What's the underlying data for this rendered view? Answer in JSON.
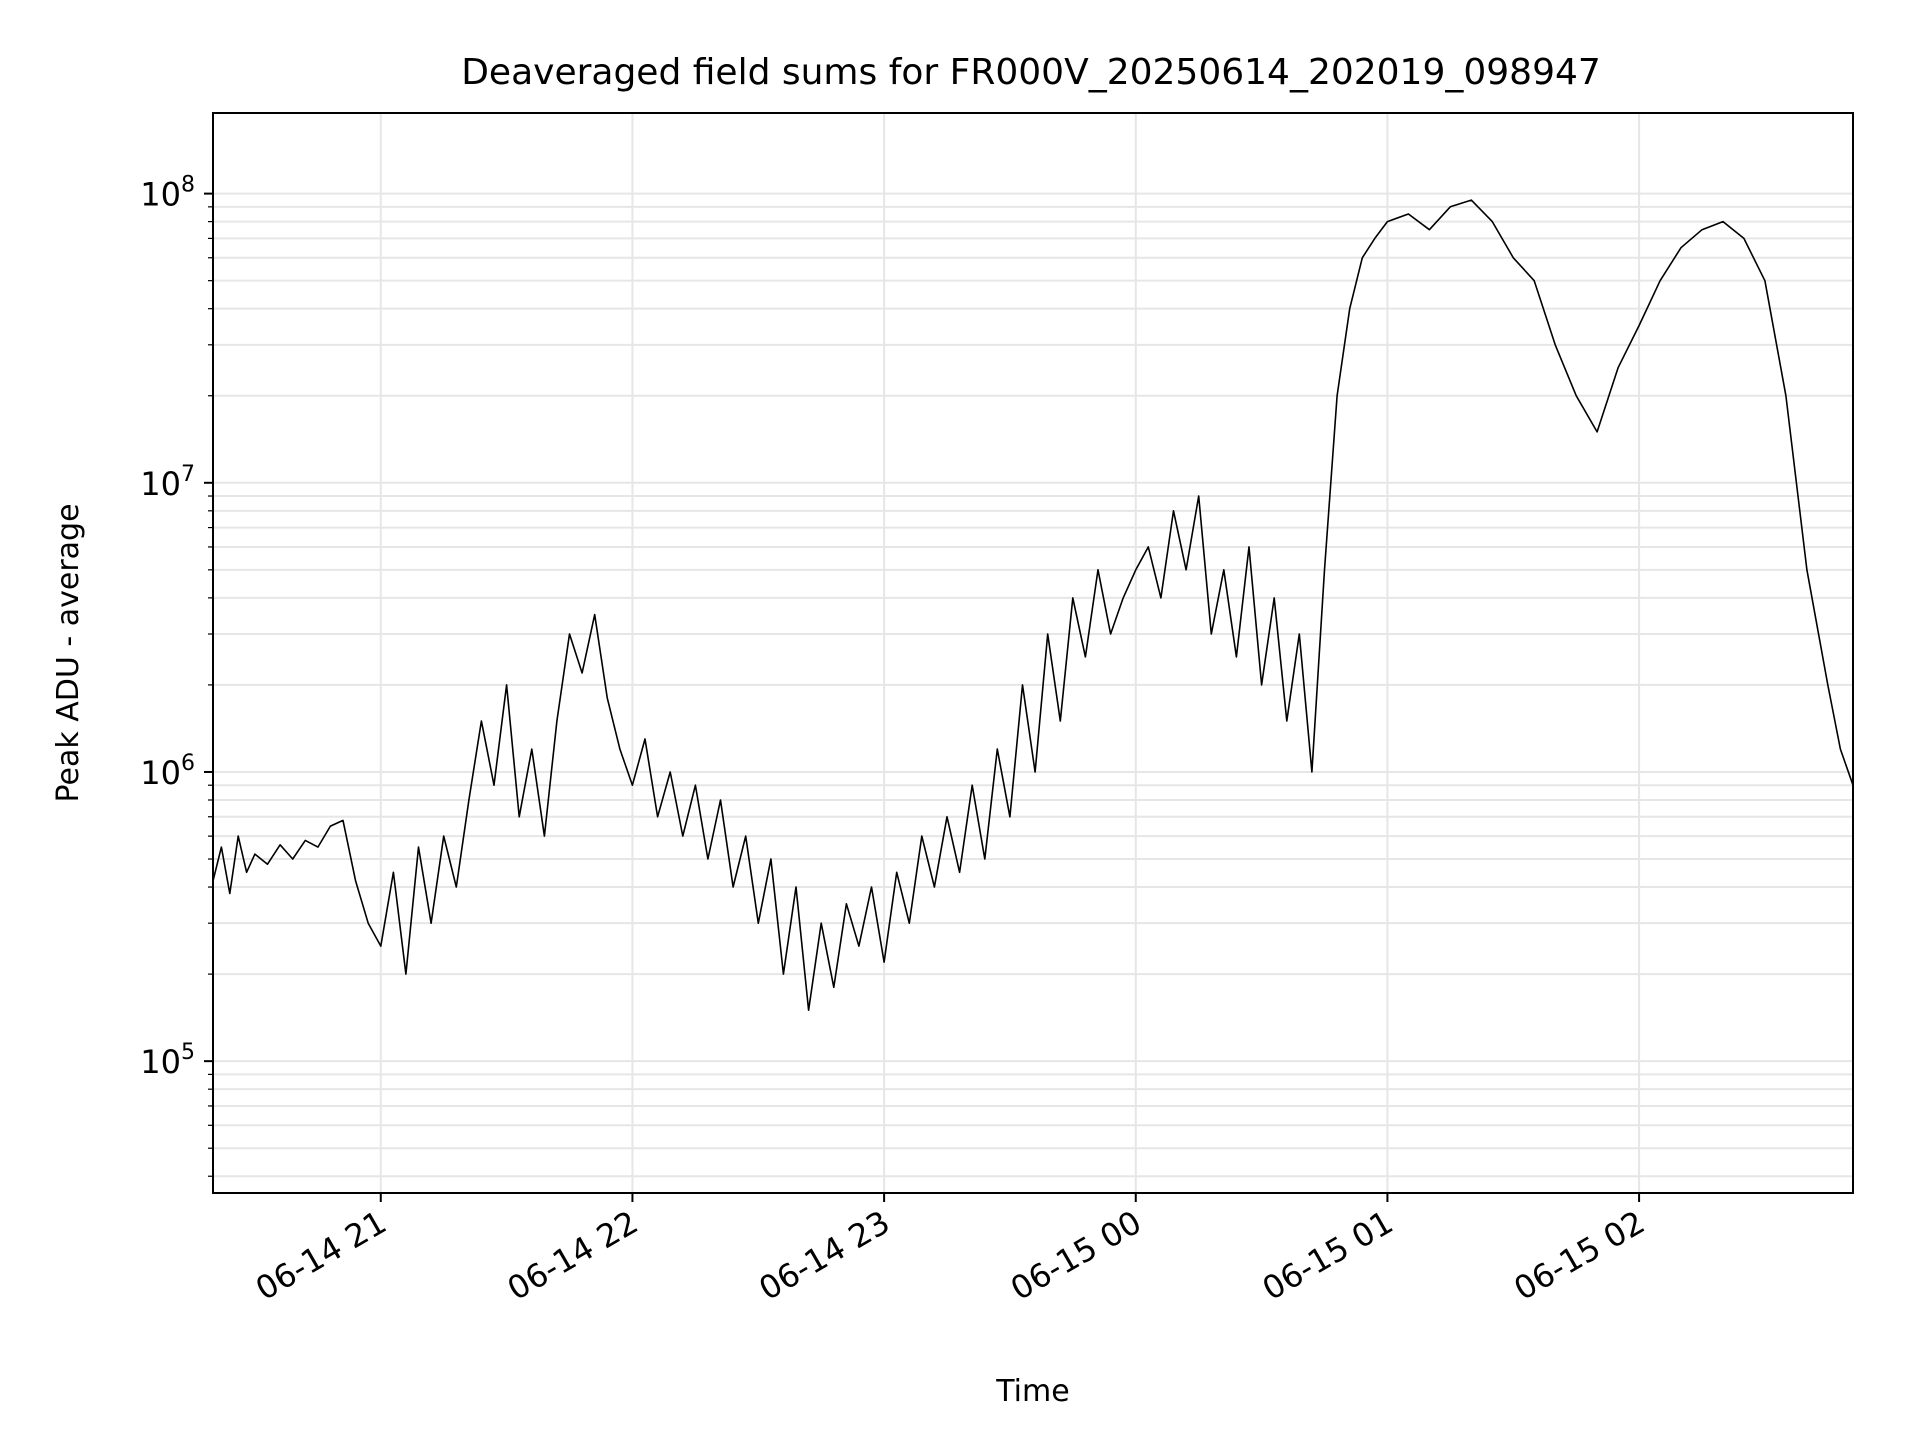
{
  "chart_data": {
    "type": "line",
    "title": "Deaveraged field sums for FR000V_20250614_202019_098947",
    "xlabel": "Time",
    "ylabel": "Peak ADU - average",
    "yscale": "log",
    "ylim": [
      35000,
      190000000
    ],
    "xlim": [
      "2025-06-14 20:20",
      "2025-06-15 02:51"
    ],
    "grid": true,
    "x_ticks": [
      {
        "t": "2025-06-14 21:00",
        "label": "06-14 21"
      },
      {
        "t": "2025-06-14 22:00",
        "label": "06-14 22"
      },
      {
        "t": "2025-06-14 23:00",
        "label": "06-14 23"
      },
      {
        "t": "2025-06-15 00:00",
        "label": "06-15 00"
      },
      {
        "t": "2025-06-15 01:00",
        "label": "06-15 01"
      },
      {
        "t": "2025-06-15 02:00",
        "label": "06-15 02"
      }
    ],
    "y_ticks": [
      {
        "value": 100000,
        "base": "10",
        "exp": "5"
      },
      {
        "value": 1000000,
        "base": "10",
        "exp": "6"
      },
      {
        "value": 10000000,
        "base": "10",
        "exp": "7"
      },
      {
        "value": 100000000,
        "base": "10",
        "exp": "8"
      }
    ],
    "series": [
      {
        "color": "#000000",
        "points": [
          [
            "2025-06-14 20:20",
            420000
          ],
          [
            "2025-06-14 20:22",
            550000
          ],
          [
            "2025-06-14 20:24",
            380000
          ],
          [
            "2025-06-14 20:26",
            600000
          ],
          [
            "2025-06-14 20:28",
            450000
          ],
          [
            "2025-06-14 20:30",
            520000
          ],
          [
            "2025-06-14 20:33",
            480000
          ],
          [
            "2025-06-14 20:36",
            560000
          ],
          [
            "2025-06-14 20:39",
            500000
          ],
          [
            "2025-06-14 20:42",
            580000
          ],
          [
            "2025-06-14 20:45",
            550000
          ],
          [
            "2025-06-14 20:48",
            650000
          ],
          [
            "2025-06-14 20:51",
            680000
          ],
          [
            "2025-06-14 20:54",
            420000
          ],
          [
            "2025-06-14 20:57",
            300000
          ],
          [
            "2025-06-14 21:00",
            250000
          ],
          [
            "2025-06-14 21:03",
            450000
          ],
          [
            "2025-06-14 21:06",
            200000
          ],
          [
            "2025-06-14 21:09",
            550000
          ],
          [
            "2025-06-14 21:12",
            300000
          ],
          [
            "2025-06-14 21:15",
            600000
          ],
          [
            "2025-06-14 21:18",
            400000
          ],
          [
            "2025-06-14 21:21",
            800000
          ],
          [
            "2025-06-14 21:24",
            1500000
          ],
          [
            "2025-06-14 21:27",
            900000
          ],
          [
            "2025-06-14 21:30",
            2000000
          ],
          [
            "2025-06-14 21:33",
            700000
          ],
          [
            "2025-06-14 21:36",
            1200000
          ],
          [
            "2025-06-14 21:39",
            600000
          ],
          [
            "2025-06-14 21:42",
            1500000
          ],
          [
            "2025-06-14 21:45",
            3000000
          ],
          [
            "2025-06-14 21:48",
            2200000
          ],
          [
            "2025-06-14 21:51",
            3500000
          ],
          [
            "2025-06-14 21:54",
            1800000
          ],
          [
            "2025-06-14 21:57",
            1200000
          ],
          [
            "2025-06-14 22:00",
            900000
          ],
          [
            "2025-06-14 22:03",
            1300000
          ],
          [
            "2025-06-14 22:06",
            700000
          ],
          [
            "2025-06-14 22:09",
            1000000
          ],
          [
            "2025-06-14 22:12",
            600000
          ],
          [
            "2025-06-14 22:15",
            900000
          ],
          [
            "2025-06-14 22:18",
            500000
          ],
          [
            "2025-06-14 22:21",
            800000
          ],
          [
            "2025-06-14 22:24",
            400000
          ],
          [
            "2025-06-14 22:27",
            600000
          ],
          [
            "2025-06-14 22:30",
            300000
          ],
          [
            "2025-06-14 22:33",
            500000
          ],
          [
            "2025-06-14 22:36",
            200000
          ],
          [
            "2025-06-14 22:39",
            400000
          ],
          [
            "2025-06-14 22:42",
            150000
          ],
          [
            "2025-06-14 22:45",
            300000
          ],
          [
            "2025-06-14 22:48",
            180000
          ],
          [
            "2025-06-14 22:51",
            350000
          ],
          [
            "2025-06-14 22:54",
            250000
          ],
          [
            "2025-06-14 22:57",
            400000
          ],
          [
            "2025-06-14 23:00",
            220000
          ],
          [
            "2025-06-14 23:03",
            450000
          ],
          [
            "2025-06-14 23:06",
            300000
          ],
          [
            "2025-06-14 23:09",
            600000
          ],
          [
            "2025-06-14 23:12",
            400000
          ],
          [
            "2025-06-14 23:15",
            700000
          ],
          [
            "2025-06-14 23:18",
            450000
          ],
          [
            "2025-06-14 23:21",
            900000
          ],
          [
            "2025-06-14 23:24",
            500000
          ],
          [
            "2025-06-14 23:27",
            1200000
          ],
          [
            "2025-06-14 23:30",
            700000
          ],
          [
            "2025-06-14 23:33",
            2000000
          ],
          [
            "2025-06-14 23:36",
            1000000
          ],
          [
            "2025-06-14 23:39",
            3000000
          ],
          [
            "2025-06-14 23:42",
            1500000
          ],
          [
            "2025-06-14 23:45",
            4000000
          ],
          [
            "2025-06-14 23:48",
            2500000
          ],
          [
            "2025-06-14 23:51",
            5000000
          ],
          [
            "2025-06-14 23:54",
            3000000
          ],
          [
            "2025-06-14 23:57",
            4000000
          ],
          [
            "2025-06-15 00:00",
            5000000
          ],
          [
            "2025-06-15 00:03",
            6000000
          ],
          [
            "2025-06-15 00:06",
            4000000
          ],
          [
            "2025-06-15 00:09",
            8000000
          ],
          [
            "2025-06-15 00:12",
            5000000
          ],
          [
            "2025-06-15 00:15",
            9000000
          ],
          [
            "2025-06-15 00:18",
            3000000
          ],
          [
            "2025-06-15 00:21",
            5000000
          ],
          [
            "2025-06-15 00:24",
            2500000
          ],
          [
            "2025-06-15 00:27",
            6000000
          ],
          [
            "2025-06-15 00:30",
            2000000
          ],
          [
            "2025-06-15 00:33",
            4000000
          ],
          [
            "2025-06-15 00:36",
            1500000
          ],
          [
            "2025-06-15 00:39",
            3000000
          ],
          [
            "2025-06-15 00:42",
            1000000
          ],
          [
            "2025-06-15 00:45",
            5000000
          ],
          [
            "2025-06-15 00:48",
            20000000
          ],
          [
            "2025-06-15 00:51",
            40000000
          ],
          [
            "2025-06-15 00:54",
            60000000
          ],
          [
            "2025-06-15 00:57",
            70000000
          ],
          [
            "2025-06-15 01:00",
            80000000
          ],
          [
            "2025-06-15 01:05",
            85000000
          ],
          [
            "2025-06-15 01:10",
            75000000
          ],
          [
            "2025-06-15 01:15",
            90000000
          ],
          [
            "2025-06-15 01:20",
            95000000
          ],
          [
            "2025-06-15 01:25",
            80000000
          ],
          [
            "2025-06-15 01:30",
            60000000
          ],
          [
            "2025-06-15 01:35",
            50000000
          ],
          [
            "2025-06-15 01:40",
            30000000
          ],
          [
            "2025-06-15 01:45",
            20000000
          ],
          [
            "2025-06-15 01:50",
            15000000
          ],
          [
            "2025-06-15 01:55",
            25000000
          ],
          [
            "2025-06-15 02:00",
            35000000
          ],
          [
            "2025-06-15 02:05",
            50000000
          ],
          [
            "2025-06-15 02:10",
            65000000
          ],
          [
            "2025-06-15 02:15",
            75000000
          ],
          [
            "2025-06-15 02:20",
            80000000
          ],
          [
            "2025-06-15 02:25",
            70000000
          ],
          [
            "2025-06-15 02:30",
            50000000
          ],
          [
            "2025-06-15 02:35",
            20000000
          ],
          [
            "2025-06-15 02:40",
            5000000
          ],
          [
            "2025-06-15 02:45",
            2000000
          ],
          [
            "2025-06-15 02:48",
            1200000
          ],
          [
            "2025-06-15 02:51",
            900000
          ]
        ]
      }
    ]
  }
}
